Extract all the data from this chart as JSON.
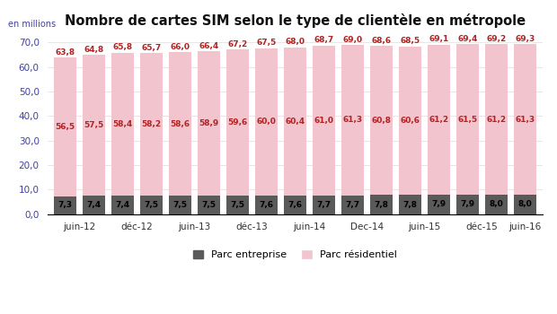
{
  "title": "Nombre de cartes SIM selon le type de clientèle en métropole",
  "ylabel": "en millions",
  "parc_entreprise": [
    7.3,
    7.4,
    7.4,
    7.5,
    7.5,
    7.5,
    7.5,
    7.6,
    7.6,
    7.7,
    7.7,
    7.8,
    7.8,
    7.9,
    7.9,
    8.0,
    8.0
  ],
  "parc_residentiel": [
    56.5,
    57.5,
    58.4,
    58.2,
    58.6,
    58.9,
    59.6,
    60.0,
    60.4,
    61.0,
    61.3,
    60.8,
    60.6,
    61.2,
    61.5,
    61.2,
    61.3
  ],
  "total_labels": [
    "63,8",
    "64,8",
    "65,8",
    "65,7",
    "66,0",
    "66,4",
    "67,2",
    "67,5",
    "68,0",
    "68,7",
    "69,0",
    "68,6",
    "68,5",
    "69,1",
    "69,4",
    "69,2",
    "69,3"
  ],
  "entreprise_labels": [
    "7,3",
    "7,4",
    "7,4",
    "7,5",
    "7,5",
    "7,5",
    "7,5",
    "7,6",
    "7,6",
    "7,7",
    "7,7",
    "7,8",
    "7,8",
    "7,9",
    "7,9",
    "8,0",
    "8,0"
  ],
  "residentiel_labels": [
    "56,5",
    "57,5",
    "58,4",
    "58,2",
    "58,6",
    "58,9",
    "59,6",
    "60,0",
    "60,4",
    "61,0",
    "61,3",
    "60,8",
    "60,6",
    "61,2",
    "61,5",
    "61,2",
    "61,3"
  ],
  "x_tick_positions": [
    0.5,
    2.5,
    4.5,
    6.5,
    8.5,
    10.5,
    12.5,
    14.5,
    16.0
  ],
  "x_tick_labels": [
    "juin-12",
    "déc-12",
    "juin-13",
    "déc-13",
    "juin-14",
    "Dec-14",
    "juin-15",
    "déc-15",
    "juin-16"
  ],
  "color_entreprise": "#5a5a5a",
  "color_residentiel": "#f2c4ce",
  "color_total_label": "#b22222",
  "color_entreprise_label": "#000000",
  "color_ytick": "#4040a0",
  "color_ylabel": "#4040a0",
  "ylim": [
    0,
    74
  ],
  "yticks": [
    0.0,
    10.0,
    20.0,
    30.0,
    40.0,
    50.0,
    60.0,
    70.0
  ],
  "background_color": "#ffffff",
  "title_fontsize": 10.5,
  "bar_label_fontsize": 6.5,
  "tick_fontsize": 7.5,
  "legend_fontsize": 8,
  "bar_width": 0.78
}
